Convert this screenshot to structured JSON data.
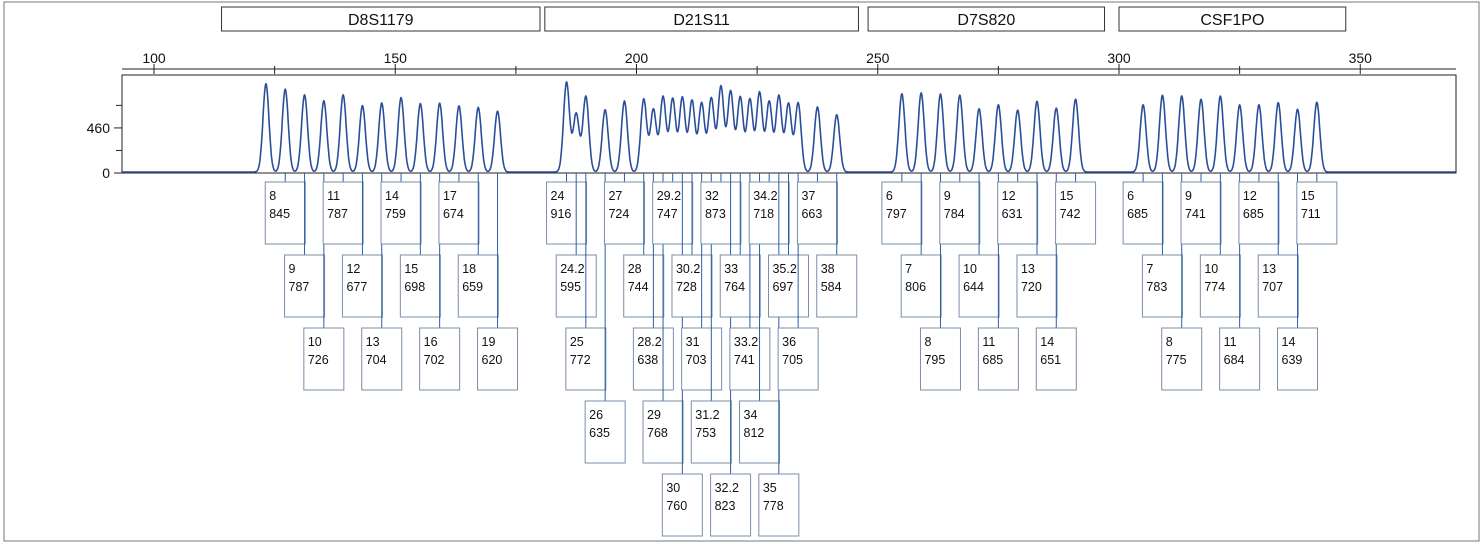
{
  "chart_data": {
    "type": "line",
    "title": "",
    "xlabel": "",
    "ylabel": "",
    "xlim": [
      89,
      371
    ],
    "ylim": [
      0,
      1000
    ],
    "x_ticks": [
      100,
      150,
      200,
      250,
      300,
      350
    ],
    "y_ticks": [
      0,
      460
    ],
    "line_color": "#2a4f9a",
    "markers": [
      {
        "name": "D8S1179",
        "start": 114,
        "end": 180
      },
      {
        "name": "D21S11",
        "start": 181,
        "end": 246
      },
      {
        "name": "D7S820",
        "start": 248,
        "end": 297
      },
      {
        "name": "CSF1PO",
        "start": 300,
        "end": 347
      }
    ],
    "series": [
      {
        "values": [
          {
            "x": 123.2,
            "y": 900
          },
          {
            "x": 127.2,
            "y": 845,
            "allele": "8",
            "height": "845"
          },
          {
            "x": 131.2,
            "y": 787,
            "allele": "9",
            "height": "787"
          },
          {
            "x": 135.2,
            "y": 726,
            "allele": "10",
            "height": "726"
          },
          {
            "x": 139.2,
            "y": 787,
            "allele": "11",
            "height": "787"
          },
          {
            "x": 143.2,
            "y": 677,
            "allele": "12",
            "height": "677"
          },
          {
            "x": 147.2,
            "y": 704,
            "allele": "13",
            "height": "704"
          },
          {
            "x": 151.2,
            "y": 759,
            "allele": "14",
            "height": "759"
          },
          {
            "x": 155.2,
            "y": 698,
            "allele": "15",
            "height": "698"
          },
          {
            "x": 159.2,
            "y": 702,
            "allele": "16",
            "height": "702"
          },
          {
            "x": 163.2,
            "y": 674,
            "allele": "17",
            "height": "674"
          },
          {
            "x": 167.2,
            "y": 659,
            "allele": "18",
            "height": "659"
          },
          {
            "x": 171.2,
            "y": 620,
            "allele": "19",
            "height": "620"
          },
          {
            "x": 185.5,
            "y": 916,
            "allele": "24",
            "height": "916"
          },
          {
            "x": 187.5,
            "y": 595,
            "allele": "24.2",
            "height": "595"
          },
          {
            "x": 189.5,
            "y": 772,
            "allele": "25",
            "height": "772"
          },
          {
            "x": 193.5,
            "y": 635,
            "allele": "26",
            "height": "635"
          },
          {
            "x": 197.5,
            "y": 724,
            "allele": "27",
            "height": "724"
          },
          {
            "x": 201.5,
            "y": 744,
            "allele": "28",
            "height": "744"
          },
          {
            "x": 203.5,
            "y": 638,
            "allele": "28.2",
            "height": "638"
          },
          {
            "x": 205.5,
            "y": 768,
            "allele": "29",
            "height": "768"
          },
          {
            "x": 207.5,
            "y": 747,
            "allele": "29.2",
            "height": "747"
          },
          {
            "x": 209.5,
            "y": 760,
            "allele": "30",
            "height": "760"
          },
          {
            "x": 211.5,
            "y": 728,
            "allele": "30.2",
            "height": "728"
          },
          {
            "x": 213.5,
            "y": 703,
            "allele": "31",
            "height": "703"
          },
          {
            "x": 215.5,
            "y": 753,
            "allele": "31.2",
            "height": "753"
          },
          {
            "x": 217.5,
            "y": 873,
            "allele": "32",
            "height": "873"
          },
          {
            "x": 219.5,
            "y": 823,
            "allele": "32.2",
            "height": "823"
          },
          {
            "x": 221.5,
            "y": 764,
            "allele": "33",
            "height": "764"
          },
          {
            "x": 223.5,
            "y": 741,
            "allele": "33.2",
            "height": "741"
          },
          {
            "x": 225.5,
            "y": 812,
            "allele": "34",
            "height": "812"
          },
          {
            "x": 227.5,
            "y": 718,
            "allele": "34.2",
            "height": "718"
          },
          {
            "x": 229.5,
            "y": 778,
            "allele": "35",
            "height": "778"
          },
          {
            "x": 231.5,
            "y": 697,
            "allele": "35.2",
            "height": "697"
          },
          {
            "x": 233.5,
            "y": 705,
            "allele": "36",
            "height": "705"
          },
          {
            "x": 237.5,
            "y": 663,
            "allele": "37",
            "height": "663"
          },
          {
            "x": 241.5,
            "y": 584,
            "allele": "38",
            "height": "584"
          },
          {
            "x": 255.0,
            "y": 797,
            "allele": "6",
            "height": "797"
          },
          {
            "x": 259.0,
            "y": 806,
            "allele": "7",
            "height": "806"
          },
          {
            "x": 263.0,
            "y": 795,
            "allele": "8",
            "height": "795"
          },
          {
            "x": 267.0,
            "y": 784,
            "allele": "9",
            "height": "784"
          },
          {
            "x": 271.0,
            "y": 644,
            "allele": "10",
            "height": "644"
          },
          {
            "x": 275.0,
            "y": 685,
            "allele": "11",
            "height": "685"
          },
          {
            "x": 279.0,
            "y": 631,
            "allele": "12",
            "height": "631"
          },
          {
            "x": 283.0,
            "y": 720,
            "allele": "13",
            "height": "720"
          },
          {
            "x": 287.0,
            "y": 651,
            "allele": "14",
            "height": "651"
          },
          {
            "x": 291.0,
            "y": 742,
            "allele": "15",
            "height": "742"
          },
          {
            "x": 305.0,
            "y": 685,
            "allele": "6",
            "height": "685"
          },
          {
            "x": 309.0,
            "y": 783,
            "allele": "7",
            "height": "783"
          },
          {
            "x": 313.0,
            "y": 775,
            "allele": "8",
            "height": "775"
          },
          {
            "x": 317.0,
            "y": 741,
            "allele": "9",
            "height": "741"
          },
          {
            "x": 321.0,
            "y": 774,
            "allele": "10",
            "height": "774"
          },
          {
            "x": 325.0,
            "y": 684,
            "allele": "11",
            "height": "684"
          },
          {
            "x": 329.0,
            "y": 685,
            "allele": "12",
            "height": "685"
          },
          {
            "x": 333.0,
            "y": 707,
            "allele": "13",
            "height": "707"
          },
          {
            "x": 337.0,
            "y": 639,
            "allele": "14",
            "height": "639"
          },
          {
            "x": 341.0,
            "y": 711,
            "allele": "15",
            "height": "711"
          }
        ]
      }
    ]
  }
}
